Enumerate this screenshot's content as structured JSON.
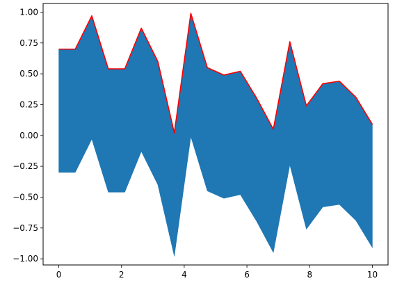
{
  "chart_data": {
    "type": "area",
    "title": "",
    "xlabel": "",
    "ylabel": "",
    "xlim": [
      -0.5,
      10.5
    ],
    "ylim": [
      -1.05,
      1.07
    ],
    "grid": false,
    "legend": "none",
    "x_ticks": [
      {
        "value": 0,
        "label": "0"
      },
      {
        "value": 2,
        "label": "2"
      },
      {
        "value": 4,
        "label": "4"
      },
      {
        "value": 6,
        "label": "6"
      },
      {
        "value": 8,
        "label": "8"
      },
      {
        "value": 10,
        "label": "10"
      }
    ],
    "y_ticks": [
      {
        "value": 1.0,
        "label": "1.00"
      },
      {
        "value": 0.75,
        "label": "0.75"
      },
      {
        "value": 0.5,
        "label": "0.50"
      },
      {
        "value": 0.25,
        "label": "0.25"
      },
      {
        "value": 0.0,
        "label": "0.00"
      },
      {
        "value": -0.25,
        "label": "−0.25"
      },
      {
        "value": -0.5,
        "label": "−0.50"
      },
      {
        "value": -0.75,
        "label": "−0.75"
      },
      {
        "value": -1.0,
        "label": "−1.00"
      }
    ],
    "x": [
      0,
      0.526,
      1.053,
      1.579,
      2.105,
      2.632,
      3.158,
      3.684,
      4.211,
      4.737,
      5.263,
      5.789,
      6.316,
      6.842,
      7.368,
      7.895,
      8.421,
      8.947,
      9.474,
      10
    ],
    "series": [
      {
        "kind": "fill_between",
        "upper": [
          0.7,
          0.7,
          0.97,
          0.54,
          0.54,
          0.87,
          0.6,
          0.02,
          0.99,
          0.55,
          0.49,
          0.52,
          0.3,
          0.05,
          0.76,
          0.24,
          0.42,
          0.44,
          0.31,
          0.09
        ],
        "lower": [
          -0.3,
          -0.3,
          -0.03,
          -0.46,
          -0.46,
          -0.13,
          -0.4,
          -0.98,
          -0.01,
          -0.45,
          -0.51,
          -0.48,
          -0.7,
          -0.95,
          -0.24,
          -0.76,
          -0.58,
          -0.56,
          -0.69,
          -0.91
        ],
        "color": "#1f77b4"
      },
      {
        "kind": "line",
        "values": [
          0.7,
          0.7,
          0.97,
          0.54,
          0.54,
          0.87,
          0.6,
          0.02,
          0.99,
          0.55,
          0.49,
          0.52,
          0.3,
          0.05,
          0.76,
          0.24,
          0.42,
          0.44,
          0.31,
          0.09
        ],
        "color": "#ff0000"
      }
    ]
  }
}
